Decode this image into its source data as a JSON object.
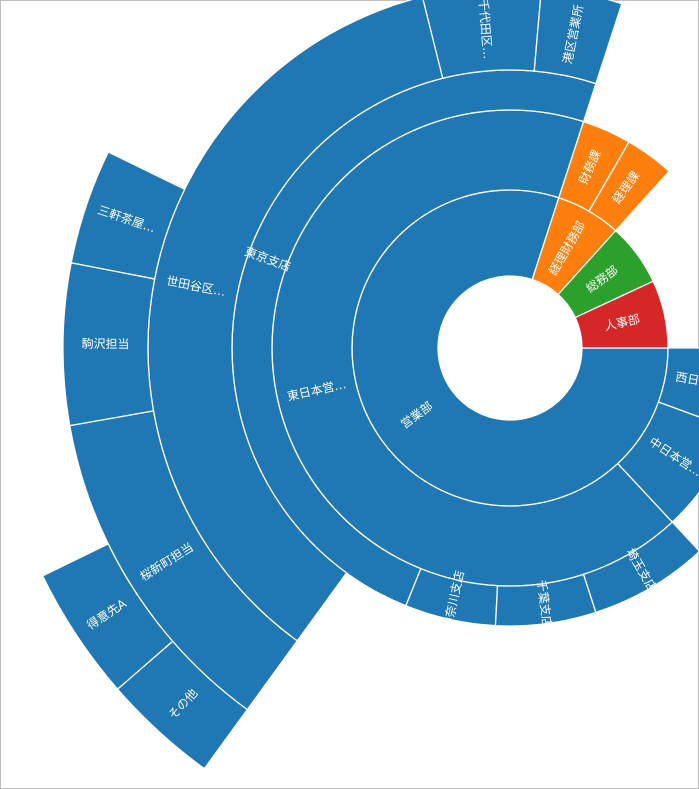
{
  "chart_data": {
    "type": "sunburst",
    "colors": {
      "営業部": "#1f77b4",
      "経理財務部": "#ff7f0e",
      "総務部": "#2ca02c",
      "人事部": "#d62728"
    },
    "nodes": [
      {
        "id": "n1",
        "label": "営業部",
        "parent": "",
        "depth": 1,
        "start_deg": 0,
        "end_deg": 293,
        "radius_level": 1,
        "color_group": "営業部"
      },
      {
        "id": "n2",
        "label": "経理財務部",
        "parent": "",
        "depth": 1,
        "start_deg": 293,
        "end_deg": 335,
        "radius_level": 1,
        "color_group": "経理財務部"
      },
      {
        "id": "n3",
        "label": "総務部",
        "parent": "",
        "depth": 1,
        "start_deg": 335,
        "end_deg": 360,
        "radius_level": 1,
        "color_group": "総務部"
      },
      {
        "id": "n4",
        "label": "人事部",
        "parent": "",
        "depth": 1,
        "start_deg": 0,
        "end_deg": 25,
        "radius_level": 1,
        "color_group": "人事部"
      },
      {
        "id": "n5",
        "label": "東日本営…",
        "parent": "n1",
        "depth": 2,
        "color_group": "営業部"
      },
      {
        "id": "n6",
        "label": "中日本営…",
        "parent": "n1",
        "depth": 2,
        "color_group": "営業部"
      },
      {
        "id": "n7",
        "label": "西日本営…",
        "parent": "n1",
        "depth": 2,
        "color_group": "営業部"
      },
      {
        "id": "n8",
        "label": "財務課",
        "parent": "n2",
        "depth": 2,
        "color_group": "経理財務部"
      },
      {
        "id": "n9",
        "label": "経理課",
        "parent": "n2",
        "depth": 2,
        "color_group": "経理財務部"
      },
      {
        "id": "n10",
        "label": "東京支店",
        "parent": "n5",
        "depth": 3,
        "color_group": "営業部"
      },
      {
        "id": "n11",
        "label": "神奈川支店",
        "parent": "n5",
        "depth": 3,
        "color_group": "営業部"
      },
      {
        "id": "n12",
        "label": "千葉支店",
        "parent": "n5",
        "depth": 3,
        "color_group": "営業部"
      },
      {
        "id": "n13",
        "label": "埼玉支店",
        "parent": "n5",
        "depth": 3,
        "color_group": "営業部"
      },
      {
        "id": "n14",
        "label": "世田谷区…",
        "parent": "n10",
        "depth": 4,
        "color_group": "営業部"
      },
      {
        "id": "n15",
        "label": "千代田区…",
        "parent": "n10",
        "depth": 4,
        "color_group": "営業部"
      },
      {
        "id": "n16",
        "label": "港区営業所",
        "parent": "n10",
        "depth": 4,
        "color_group": "営業部"
      },
      {
        "id": "n17",
        "label": "桜新町担当",
        "parent": "n14",
        "depth": 5,
        "color_group": "営業部"
      },
      {
        "id": "n18",
        "label": "駒沢担当",
        "parent": "n14",
        "depth": 5,
        "color_group": "営業部"
      },
      {
        "id": "n19",
        "label": "三軒茶屋…",
        "parent": "n14",
        "depth": 5,
        "color_group": "営業部"
      },
      {
        "id": "n20",
        "label": "その他",
        "parent": "n17",
        "depth": 6,
        "color_group": "営業部"
      },
      {
        "id": "n21",
        "label": "得意先A",
        "parent": "n17",
        "depth": 6,
        "color_group": "営業部"
      }
    ]
  }
}
